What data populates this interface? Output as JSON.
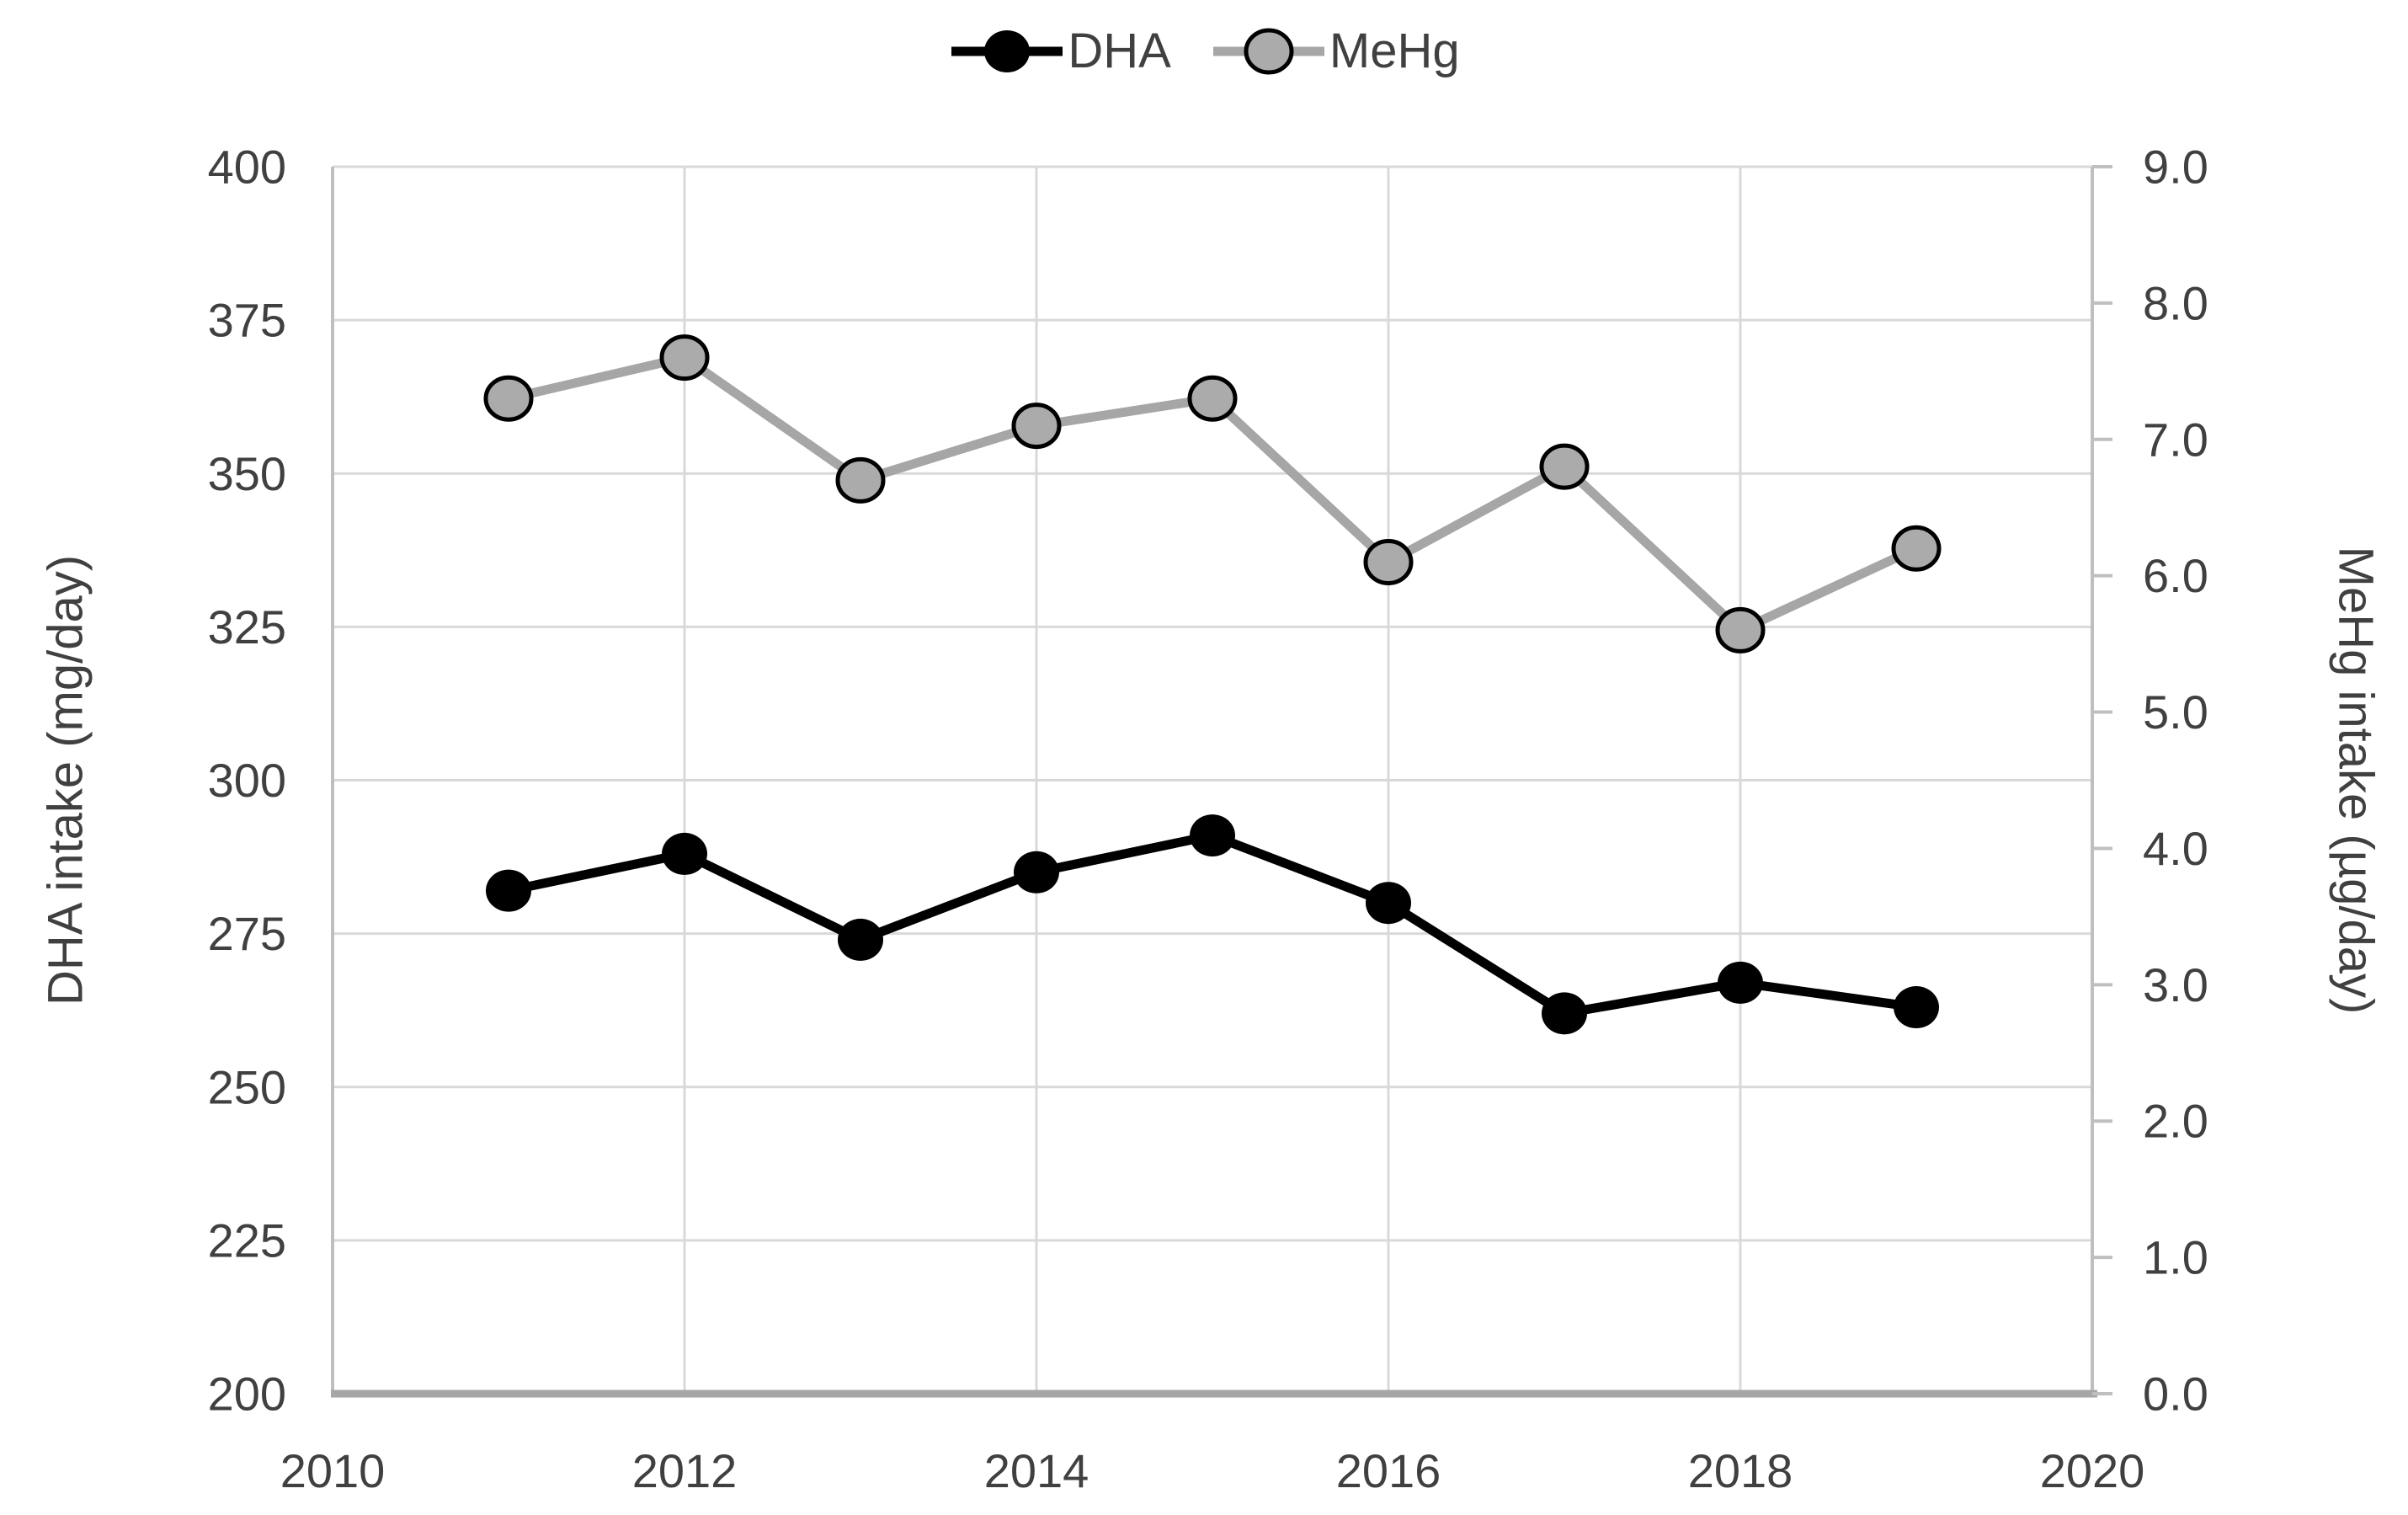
{
  "chart_data": {
    "type": "line",
    "title": "",
    "x": [
      2011,
      2012,
      2013,
      2014,
      2015,
      2016,
      2017,
      2018,
      2019
    ],
    "series": [
      {
        "name": "DHA",
        "axis": "left",
        "color": "#000000",
        "marker_fill": "#000000",
        "marker_stroke": "#000000",
        "values": [
          282,
          288,
          274,
          285,
          291,
          280,
          262,
          267,
          263
        ]
      },
      {
        "name": "MeHg",
        "axis": "right",
        "color": "#a6a6a6",
        "marker_fill": "#ababab",
        "marker_stroke": "#000000",
        "values": [
          7.3,
          7.6,
          6.7,
          7.1,
          7.3,
          6.1,
          6.8,
          5.6,
          6.2
        ]
      }
    ],
    "x_axis": {
      "min": 2010,
      "max": 2020,
      "tick_step": 2,
      "tick_labels": [
        "2010",
        "2012",
        "2014",
        "2016",
        "2018",
        "2020"
      ]
    },
    "left_axis": {
      "title": "DHA intake (mg/day)",
      "min": 200,
      "max": 400,
      "tick_step": 25,
      "tick_labels": [
        "200",
        "225",
        "250",
        "275",
        "300",
        "325",
        "350",
        "375",
        "400"
      ]
    },
    "right_axis": {
      "title": "MeHg intake (µg/day)",
      "min": 0,
      "max": 9,
      "tick_step": 1,
      "tick_labels": [
        "0.0",
        "1.0",
        "2.0",
        "3.0",
        "4.0",
        "5.0",
        "6.0",
        "7.0",
        "8.0",
        "9.0"
      ]
    },
    "grid": {
      "horizontal": true,
      "vertical": true
    },
    "legend_position": "top"
  },
  "colors": {
    "text": "#404040",
    "gridline": "#d9d9d9",
    "plot_border": "#bfbfbf",
    "bottom_axis": "#a6a6a6"
  }
}
